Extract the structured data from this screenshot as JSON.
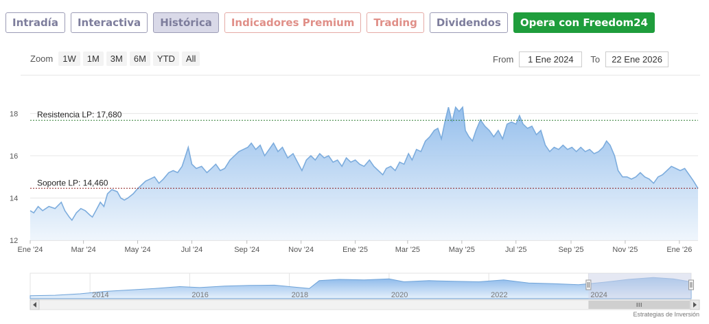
{
  "tabs": [
    {
      "label": "Intradía",
      "style": "default"
    },
    {
      "label": "Interactiva",
      "style": "default"
    },
    {
      "label": "Histórica",
      "style": "active"
    },
    {
      "label": "Indicadores Premium",
      "style": "warm"
    },
    {
      "label": "Trading",
      "style": "warm"
    },
    {
      "label": "Dividendos",
      "style": "default"
    },
    {
      "label": "Opera con Freedom24",
      "style": "green"
    }
  ],
  "zoom": {
    "label": "Zoom",
    "buttons": [
      "1W",
      "1M",
      "3M",
      "6M",
      "YTD",
      "All"
    ]
  },
  "range": {
    "from_label": "From",
    "from_value": "1 Ene 2024",
    "to_label": "To",
    "to_value": "22 Ene 2026"
  },
  "colors": {
    "line": "#7cacdd",
    "fill_top": "#8ab8ea",
    "fill_bottom": "#eef5fc",
    "resistance": "#2e7d32",
    "support": "#8b1a1a",
    "tab_green": "#1f9d3c"
  },
  "chart_data": {
    "type": "area",
    "x_start": "2024-01-01",
    "x_end": "2026-01-22",
    "ylim": [
      12,
      18.5
    ],
    "yticks": [
      12,
      14,
      16,
      18
    ],
    "xticks": [
      {
        "date": "2024-01-01",
        "label": "Ene '24"
      },
      {
        "date": "2024-03-01",
        "label": "Mar '24"
      },
      {
        "date": "2024-05-01",
        "label": "May '24"
      },
      {
        "date": "2024-07-01",
        "label": "Jul '24"
      },
      {
        "date": "2024-09-01",
        "label": "Sep '24"
      },
      {
        "date": "2024-11-01",
        "label": "Nov '24"
      },
      {
        "date": "2025-01-01",
        "label": "Ene '25"
      },
      {
        "date": "2025-03-01",
        "label": "Mar '25"
      },
      {
        "date": "2025-05-01",
        "label": "May '25"
      },
      {
        "date": "2025-07-01",
        "label": "Jul '25"
      },
      {
        "date": "2025-09-01",
        "label": "Sep '25"
      },
      {
        "date": "2025-11-01",
        "label": "Nov '25"
      },
      {
        "date": "2026-01-01",
        "label": "Ene '26"
      }
    ],
    "reference_lines": [
      {
        "label": "Resistencia LP: 17,680",
        "value": 17.68,
        "color": "#2e7d32"
      },
      {
        "label": "Soporte LP: 14,460",
        "value": 14.46,
        "color": "#8b1a1a"
      }
    ],
    "series": [
      {
        "values": [
          [
            "2024-01-01",
            13.4
          ],
          [
            "2024-01-05",
            13.3
          ],
          [
            "2024-01-10",
            13.6
          ],
          [
            "2024-01-15",
            13.4
          ],
          [
            "2024-01-22",
            13.6
          ],
          [
            "2024-01-29",
            13.5
          ],
          [
            "2024-02-05",
            13.8
          ],
          [
            "2024-02-09",
            13.4
          ],
          [
            "2024-02-14",
            13.1
          ],
          [
            "2024-02-17",
            12.95
          ],
          [
            "2024-02-22",
            13.3
          ],
          [
            "2024-02-27",
            13.5
          ],
          [
            "2024-03-03",
            13.4
          ],
          [
            "2024-03-08",
            13.2
          ],
          [
            "2024-03-11",
            13.1
          ],
          [
            "2024-03-15",
            13.4
          ],
          [
            "2024-03-20",
            13.8
          ],
          [
            "2024-03-24",
            13.6
          ],
          [
            "2024-03-28",
            14.2
          ],
          [
            "2024-04-02",
            14.4
          ],
          [
            "2024-04-08",
            14.3
          ],
          [
            "2024-04-12",
            14.0
          ],
          [
            "2024-04-16",
            13.9
          ],
          [
            "2024-04-20",
            14.0
          ],
          [
            "2024-04-26",
            14.2
          ],
          [
            "2024-04-30",
            14.4
          ],
          [
            "2024-05-05",
            14.6
          ],
          [
            "2024-05-10",
            14.8
          ],
          [
            "2024-05-15",
            14.9
          ],
          [
            "2024-05-20",
            15.0
          ],
          [
            "2024-05-25",
            14.7
          ],
          [
            "2024-05-30",
            14.9
          ],
          [
            "2024-06-05",
            15.2
          ],
          [
            "2024-06-10",
            15.3
          ],
          [
            "2024-06-15",
            15.2
          ],
          [
            "2024-06-20",
            15.5
          ],
          [
            "2024-06-24",
            16.0
          ],
          [
            "2024-06-27",
            16.4
          ],
          [
            "2024-07-01",
            15.6
          ],
          [
            "2024-07-06",
            15.4
          ],
          [
            "2024-07-12",
            15.5
          ],
          [
            "2024-07-18",
            15.2
          ],
          [
            "2024-07-23",
            15.4
          ],
          [
            "2024-07-28",
            15.6
          ],
          [
            "2024-08-02",
            15.3
          ],
          [
            "2024-08-07",
            15.4
          ],
          [
            "2024-08-13",
            15.8
          ],
          [
            "2024-08-18",
            16.0
          ],
          [
            "2024-08-23",
            16.2
          ],
          [
            "2024-08-28",
            16.3
          ],
          [
            "2024-09-02",
            16.4
          ],
          [
            "2024-09-06",
            16.6
          ],
          [
            "2024-09-11",
            16.3
          ],
          [
            "2024-09-16",
            16.5
          ],
          [
            "2024-09-21",
            16.0
          ],
          [
            "2024-09-26",
            16.3
          ],
          [
            "2024-10-01",
            16.6
          ],
          [
            "2024-10-06",
            16.2
          ],
          [
            "2024-10-11",
            16.4
          ],
          [
            "2024-10-17",
            15.9
          ],
          [
            "2024-10-23",
            16.1
          ],
          [
            "2024-10-28",
            15.7
          ],
          [
            "2024-11-02",
            15.3
          ],
          [
            "2024-11-07",
            15.8
          ],
          [
            "2024-11-12",
            16.0
          ],
          [
            "2024-11-17",
            15.8
          ],
          [
            "2024-11-22",
            16.1
          ],
          [
            "2024-11-27",
            15.9
          ],
          [
            "2024-12-02",
            16.0
          ],
          [
            "2024-12-07",
            15.7
          ],
          [
            "2024-12-12",
            15.8
          ],
          [
            "2024-12-17",
            15.5
          ],
          [
            "2024-12-22",
            15.9
          ],
          [
            "2024-12-27",
            15.7
          ],
          [
            "2025-01-01",
            15.8
          ],
          [
            "2025-01-06",
            15.6
          ],
          [
            "2025-01-11",
            15.5
          ],
          [
            "2025-01-17",
            15.8
          ],
          [
            "2025-01-22",
            15.5
          ],
          [
            "2025-01-27",
            15.3
          ],
          [
            "2025-02-01",
            15.1
          ],
          [
            "2025-02-05",
            15.4
          ],
          [
            "2025-02-10",
            15.5
          ],
          [
            "2025-02-15",
            15.3
          ],
          [
            "2025-02-20",
            15.7
          ],
          [
            "2025-02-25",
            15.6
          ],
          [
            "2025-03-02",
            16.1
          ],
          [
            "2025-03-06",
            15.8
          ],
          [
            "2025-03-11",
            16.3
          ],
          [
            "2025-03-16",
            16.2
          ],
          [
            "2025-03-21",
            16.7
          ],
          [
            "2025-03-26",
            16.9
          ],
          [
            "2025-03-31",
            17.2
          ],
          [
            "2025-04-04",
            17.3
          ],
          [
            "2025-04-08",
            16.8
          ],
          [
            "2025-04-12",
            17.6
          ],
          [
            "2025-04-16",
            18.3
          ],
          [
            "2025-04-20",
            17.6
          ],
          [
            "2025-04-24",
            18.3
          ],
          [
            "2025-04-28",
            18.1
          ],
          [
            "2025-05-02",
            18.3
          ],
          [
            "2025-05-05",
            17.2
          ],
          [
            "2025-05-09",
            16.9
          ],
          [
            "2025-05-13",
            16.7
          ],
          [
            "2025-05-17",
            17.2
          ],
          [
            "2025-05-22",
            17.7
          ],
          [
            "2025-05-27",
            17.4
          ],
          [
            "2025-06-01",
            17.2
          ],
          [
            "2025-06-06",
            16.9
          ],
          [
            "2025-06-11",
            17.2
          ],
          [
            "2025-06-16",
            16.8
          ],
          [
            "2025-06-21",
            17.5
          ],
          [
            "2025-06-26",
            17.6
          ],
          [
            "2025-07-01",
            17.5
          ],
          [
            "2025-07-05",
            17.9
          ],
          [
            "2025-07-09",
            17.5
          ],
          [
            "2025-07-14",
            17.3
          ],
          [
            "2025-07-19",
            17.4
          ],
          [
            "2025-07-24",
            17.0
          ],
          [
            "2025-07-29",
            17.2
          ],
          [
            "2025-08-03",
            16.5
          ],
          [
            "2025-08-08",
            16.2
          ],
          [
            "2025-08-13",
            16.4
          ],
          [
            "2025-08-18",
            16.3
          ],
          [
            "2025-08-23",
            16.5
          ],
          [
            "2025-08-28",
            16.3
          ],
          [
            "2025-09-02",
            16.4
          ],
          [
            "2025-09-07",
            16.2
          ],
          [
            "2025-09-12",
            16.4
          ],
          [
            "2025-09-17",
            16.2
          ],
          [
            "2025-09-22",
            16.3
          ],
          [
            "2025-09-27",
            16.1
          ],
          [
            "2025-10-02",
            16.2
          ],
          [
            "2025-10-07",
            16.4
          ],
          [
            "2025-10-11",
            16.7
          ],
          [
            "2025-10-15",
            16.5
          ],
          [
            "2025-10-20",
            16.0
          ],
          [
            "2025-10-24",
            15.3
          ],
          [
            "2025-10-29",
            15.0
          ],
          [
            "2025-11-03",
            15.0
          ],
          [
            "2025-11-08",
            14.9
          ],
          [
            "2025-11-13",
            15.0
          ],
          [
            "2025-11-18",
            15.2
          ],
          [
            "2025-11-23",
            15.0
          ],
          [
            "2025-11-28",
            14.9
          ],
          [
            "2025-12-03",
            14.7
          ],
          [
            "2025-12-08",
            15.0
          ],
          [
            "2025-12-13",
            15.1
          ],
          [
            "2025-12-18",
            15.3
          ],
          [
            "2025-12-23",
            15.5
          ],
          [
            "2025-12-28",
            15.4
          ],
          [
            "2026-01-02",
            15.3
          ],
          [
            "2026-01-07",
            15.4
          ],
          [
            "2026-01-12",
            15.1
          ],
          [
            "2026-01-17",
            14.8
          ],
          [
            "2026-01-22",
            14.45
          ]
        ]
      }
    ],
    "navigator": {
      "labels": [
        "2014",
        "2016",
        "2018",
        "2020",
        "2022",
        "2024"
      ],
      "label_years": [
        2014,
        2016,
        2018,
        2020,
        2022,
        2024
      ],
      "start_year": 2012.8,
      "end_year": 2026.06,
      "selected_from_year": 2024.0,
      "selected_to_year": 2026.06,
      "profile": [
        [
          2012.8,
          0.12
        ],
        [
          2013.3,
          0.14
        ],
        [
          2013.8,
          0.2
        ],
        [
          2014.3,
          0.3
        ],
        [
          2014.8,
          0.36
        ],
        [
          2015.3,
          0.42
        ],
        [
          2015.8,
          0.5
        ],
        [
          2016.2,
          0.46
        ],
        [
          2016.7,
          0.52
        ],
        [
          2017.2,
          0.55
        ],
        [
          2017.7,
          0.56
        ],
        [
          2018.0,
          0.5
        ],
        [
          2018.4,
          0.42
        ],
        [
          2018.6,
          0.75
        ],
        [
          2019.0,
          0.8
        ],
        [
          2019.5,
          0.78
        ],
        [
          2020.0,
          0.82
        ],
        [
          2020.3,
          0.7
        ],
        [
          2020.8,
          0.75
        ],
        [
          2021.3,
          0.72
        ],
        [
          2021.8,
          0.7
        ],
        [
          2022.3,
          0.78
        ],
        [
          2022.8,
          0.65
        ],
        [
          2023.3,
          0.62
        ],
        [
          2023.8,
          0.58
        ],
        [
          2024.3,
          0.68
        ],
        [
          2024.8,
          0.8
        ],
        [
          2025.3,
          0.88
        ],
        [
          2025.7,
          0.82
        ],
        [
          2026.06,
          0.7
        ]
      ]
    }
  },
  "credit": "Estrategias de Inversión"
}
